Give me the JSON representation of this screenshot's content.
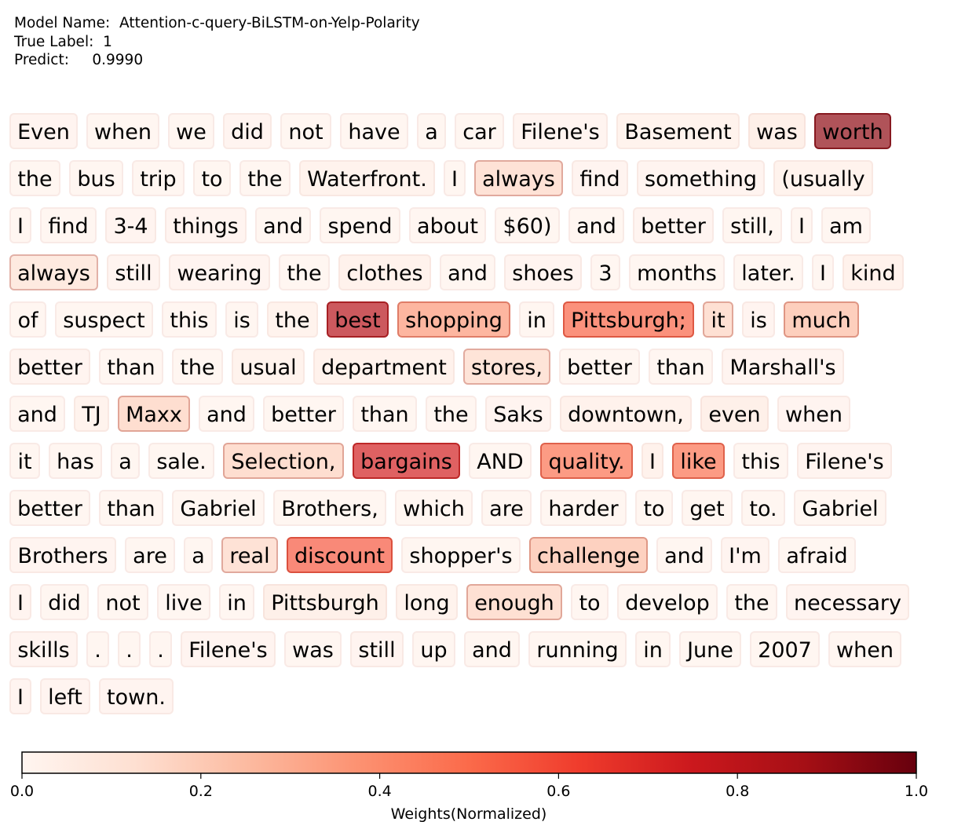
{
  "header": {
    "model_label": "Model Name:",
    "model_name": "Attention-c-query-BiLSTM-on-Yelp-Polarity",
    "true_label_label": "True Label:",
    "true_label": "1",
    "predict_label": "Predict:",
    "predict": "0.9990"
  },
  "chart_data": {
    "type": "heatmap",
    "lines": [
      [
        [
          "Even",
          0.03
        ],
        [
          "when",
          0.02
        ],
        [
          "we",
          0.02
        ],
        [
          "did",
          0.03
        ],
        [
          "not",
          0.02
        ],
        [
          "have",
          0.02
        ],
        [
          "a",
          0.02
        ],
        [
          "car",
          0.02
        ],
        [
          "Filene's",
          0.03
        ],
        [
          "Basement",
          0.04
        ],
        [
          "was",
          0.07
        ],
        [
          "worth",
          0.92
        ]
      ],
      [
        [
          "the",
          0.02
        ],
        [
          "bus",
          0.02
        ],
        [
          "trip",
          0.02
        ],
        [
          "to",
          0.02
        ],
        [
          "the",
          0.02
        ],
        [
          "Waterfront.",
          0.04
        ],
        [
          "I",
          0.02
        ],
        [
          "always",
          0.16
        ],
        [
          "find",
          0.03
        ],
        [
          "something",
          0.03
        ],
        [
          "(usually",
          0.04
        ]
      ],
      [
        [
          "I",
          0.02
        ],
        [
          "find",
          0.02
        ],
        [
          "3-4",
          0.03
        ],
        [
          "things",
          0.03
        ],
        [
          "and",
          0.02
        ],
        [
          "spend",
          0.02
        ],
        [
          "about",
          0.02
        ],
        [
          "$60)",
          0.02
        ],
        [
          "and",
          0.02
        ],
        [
          "better",
          0.03
        ],
        [
          "still,",
          0.02
        ],
        [
          "I",
          0.02
        ],
        [
          "am",
          0.02
        ]
      ],
      [
        [
          "always",
          0.12
        ],
        [
          "still",
          0.03
        ],
        [
          "wearing",
          0.03
        ],
        [
          "the",
          0.02
        ],
        [
          "clothes",
          0.05
        ],
        [
          "and",
          0.02
        ],
        [
          "shoes",
          0.03
        ],
        [
          "3",
          0.02
        ],
        [
          "months",
          0.02
        ],
        [
          "later.",
          0.02
        ],
        [
          "I",
          0.02
        ],
        [
          "kind",
          0.05
        ]
      ],
      [
        [
          "of",
          0.02
        ],
        [
          "suspect",
          0.02
        ],
        [
          "this",
          0.02
        ],
        [
          "is",
          0.02
        ],
        [
          "the",
          0.04
        ],
        [
          "best",
          0.82
        ],
        [
          "shopping",
          0.36
        ],
        [
          "in",
          0.02
        ],
        [
          "Pittsburgh;",
          0.52
        ],
        [
          "it",
          0.17
        ],
        [
          "is",
          0.03
        ],
        [
          "much",
          0.25
        ]
      ],
      [
        [
          "better",
          0.03
        ],
        [
          "than",
          0.02
        ],
        [
          "the",
          0.02
        ],
        [
          "usual",
          0.04
        ],
        [
          "department",
          0.05
        ],
        [
          "stores,",
          0.15
        ],
        [
          "better",
          0.02
        ],
        [
          "than",
          0.02
        ],
        [
          "Marshall's",
          0.03
        ]
      ],
      [
        [
          "and",
          0.02
        ],
        [
          "TJ",
          0.04
        ],
        [
          "Maxx",
          0.18
        ],
        [
          "and",
          0.02
        ],
        [
          "better",
          0.02
        ],
        [
          "than",
          0.02
        ],
        [
          "the",
          0.02
        ],
        [
          "Saks",
          0.03
        ],
        [
          "downtown,",
          0.05
        ],
        [
          "even",
          0.07
        ],
        [
          "when",
          0.03
        ]
      ],
      [
        [
          "it",
          0.02
        ],
        [
          "has",
          0.02
        ],
        [
          "a",
          0.02
        ],
        [
          "sale.",
          0.02
        ],
        [
          "Selection,",
          0.18
        ],
        [
          "bargains",
          0.73
        ],
        [
          "AND",
          0.02
        ],
        [
          "quality.",
          0.48
        ],
        [
          "I",
          0.05
        ],
        [
          "like",
          0.48
        ],
        [
          "this",
          0.02
        ],
        [
          "Filene's",
          0.03
        ]
      ],
      [
        [
          "better",
          0.02
        ],
        [
          "than",
          0.02
        ],
        [
          "Gabriel",
          0.02
        ],
        [
          "Brothers,",
          0.02
        ],
        [
          "which",
          0.02
        ],
        [
          "are",
          0.02
        ],
        [
          "harder",
          0.02
        ],
        [
          "to",
          0.02
        ],
        [
          "get",
          0.02
        ],
        [
          "to.",
          0.02
        ],
        [
          "Gabriel",
          0.02
        ]
      ],
      [
        [
          "Brothers",
          0.03
        ],
        [
          "are",
          0.02
        ],
        [
          "a",
          0.02
        ],
        [
          "real",
          0.16
        ],
        [
          "discount",
          0.55
        ],
        [
          "shopper's",
          0.02
        ],
        [
          "challenge",
          0.24
        ],
        [
          "and",
          0.02
        ],
        [
          "I'm",
          0.03
        ],
        [
          "afraid",
          0.02
        ]
      ],
      [
        [
          "I",
          0.03
        ],
        [
          "did",
          0.02
        ],
        [
          "not",
          0.02
        ],
        [
          "live",
          0.02
        ],
        [
          "in",
          0.02
        ],
        [
          "Pittsburgh",
          0.07
        ],
        [
          "long",
          0.04
        ],
        [
          "enough",
          0.17
        ],
        [
          "to",
          0.02
        ],
        [
          "develop",
          0.02
        ],
        [
          "the",
          0.02
        ],
        [
          "necessary",
          0.03
        ]
      ],
      [
        [
          "skills",
          0.03
        ],
        [
          ".",
          0.02
        ],
        [
          ".",
          0.02
        ],
        [
          ".",
          0.02
        ],
        [
          "Filene's",
          0.03
        ],
        [
          "was",
          0.02
        ],
        [
          "still",
          0.03
        ],
        [
          "up",
          0.02
        ],
        [
          "and",
          0.02
        ],
        [
          "running",
          0.02
        ],
        [
          "in",
          0.02
        ],
        [
          "June",
          0.02
        ],
        [
          "2007",
          0.02
        ],
        [
          "when",
          0.02
        ]
      ],
      [
        [
          "I",
          0.03
        ],
        [
          "left",
          0.03
        ],
        [
          "town.",
          0.03
        ]
      ]
    ],
    "colorbar": {
      "label": "Weights(Normalized)",
      "ticks": [
        "0.0",
        "0.2",
        "0.4",
        "0.6",
        "0.8",
        "1.0"
      ],
      "range": [
        0,
        1
      ],
      "colormap": "Reds"
    }
  }
}
